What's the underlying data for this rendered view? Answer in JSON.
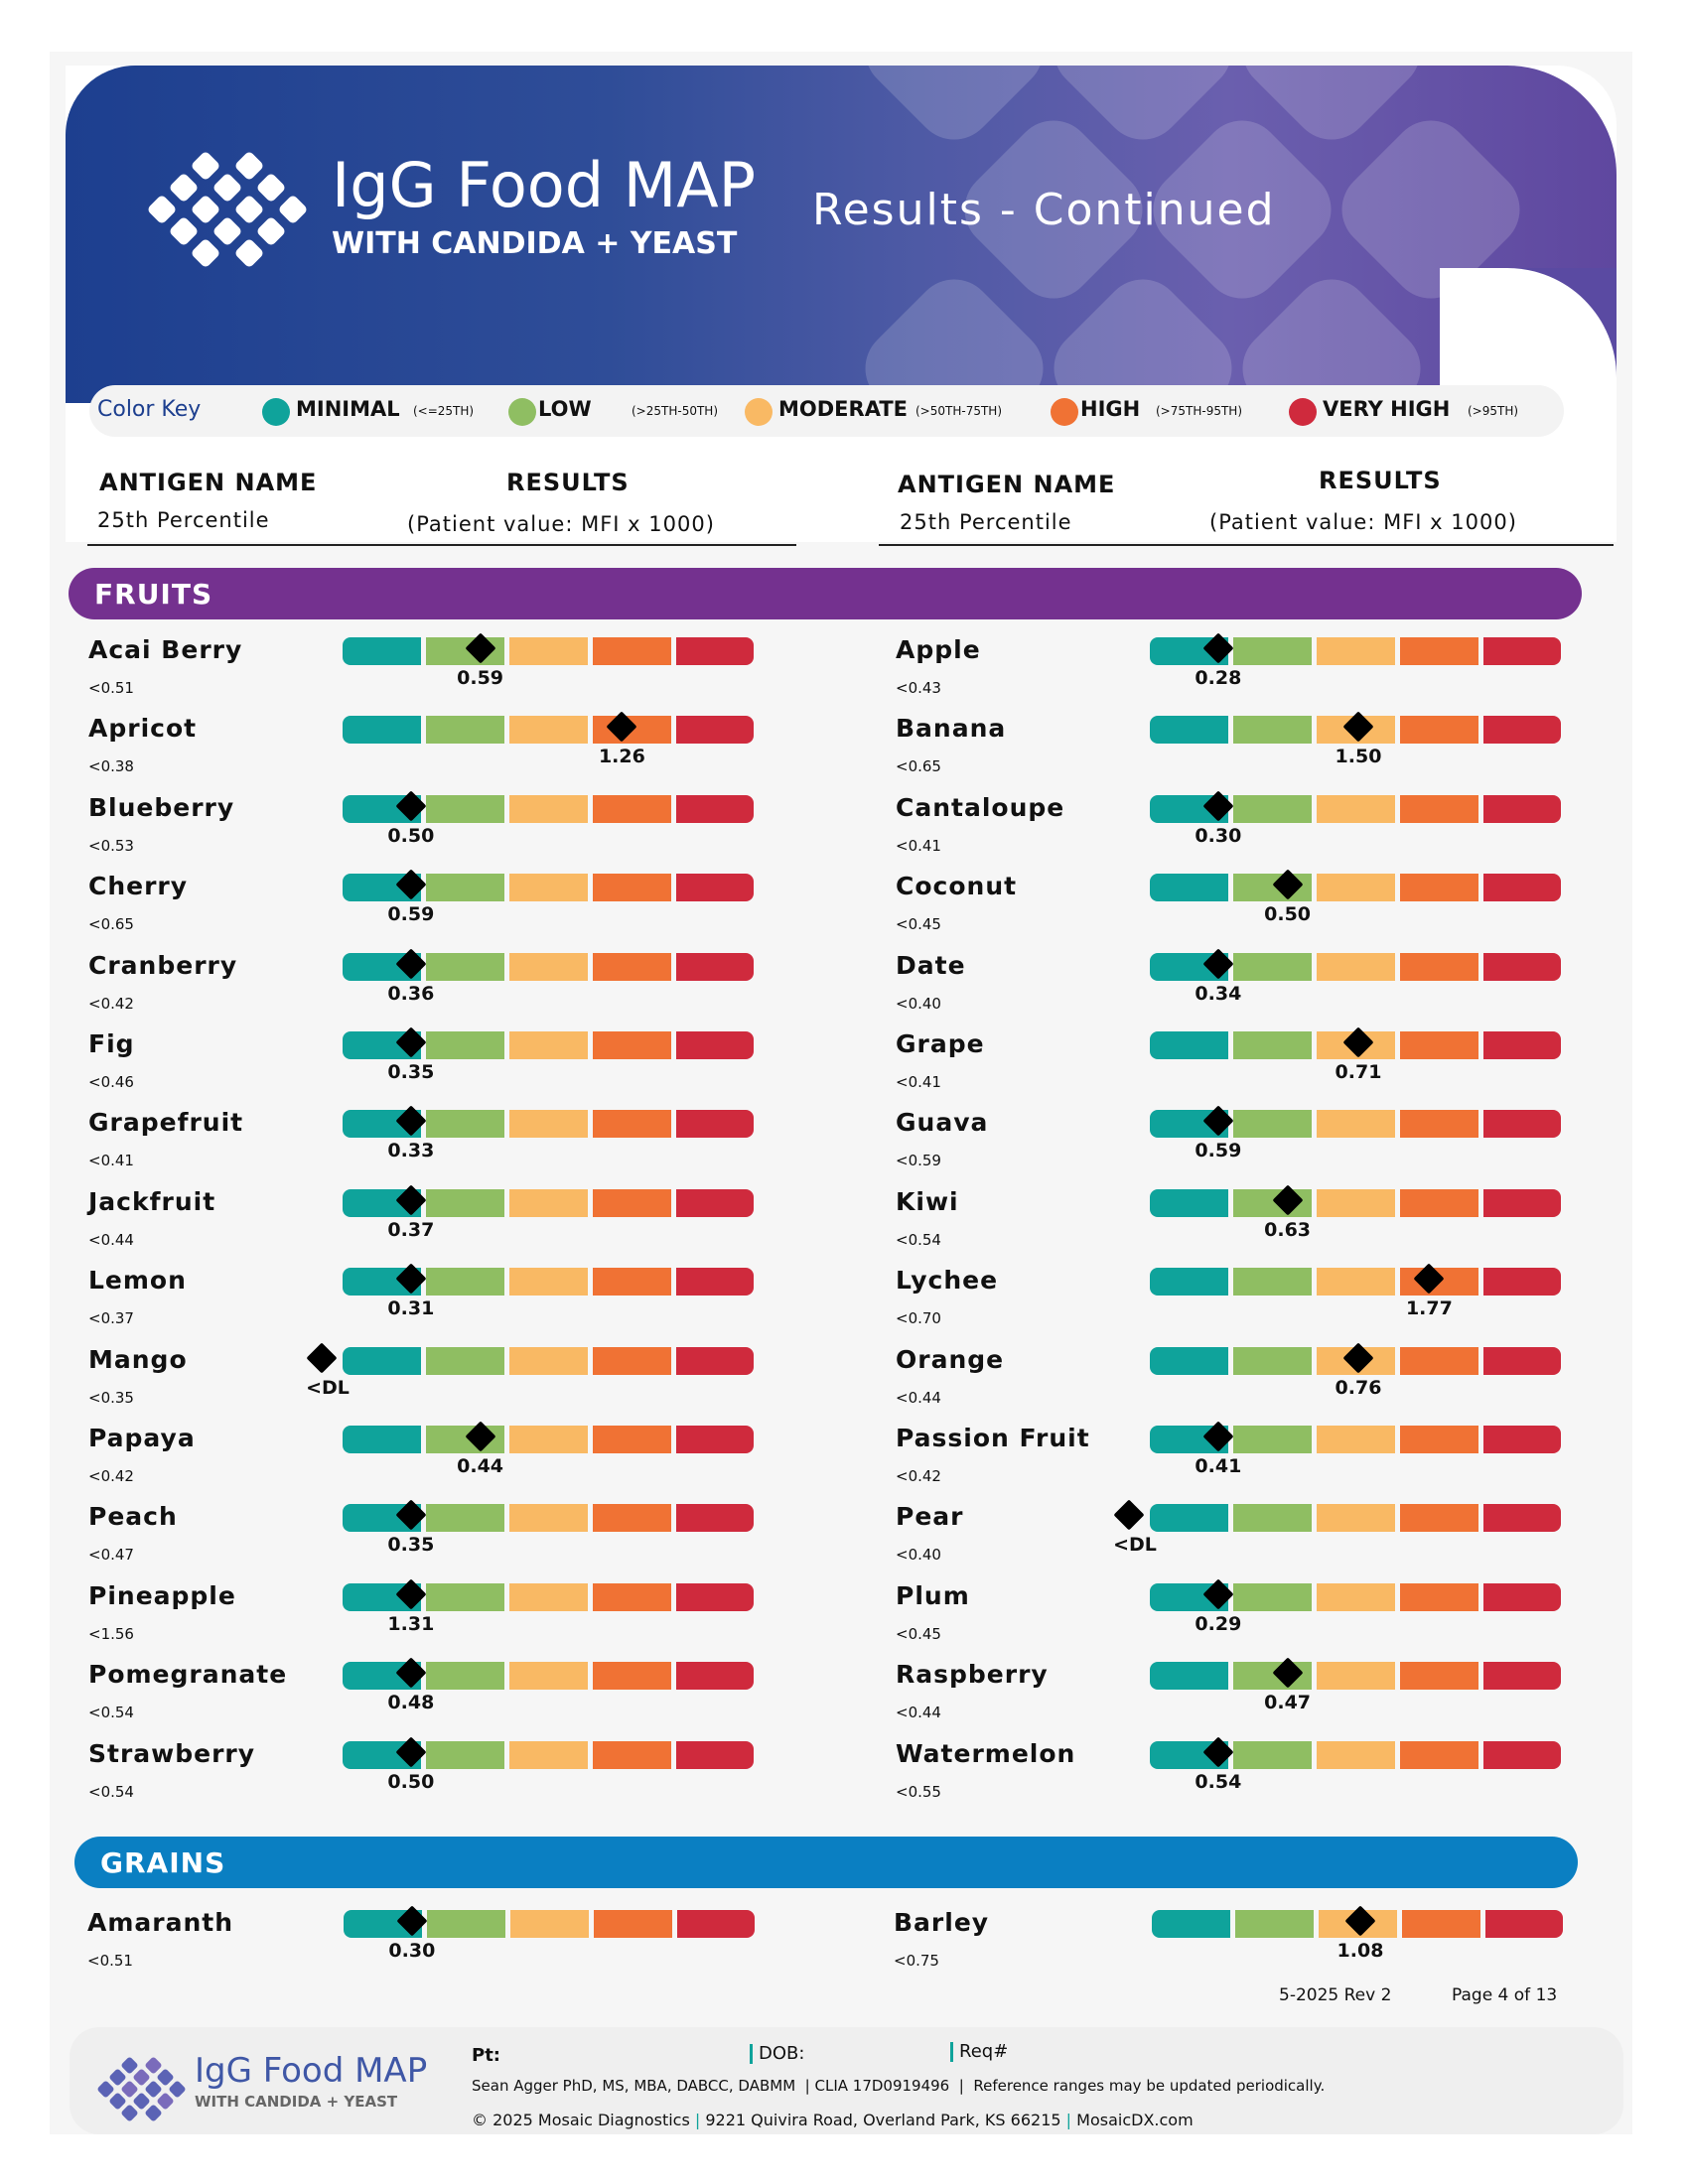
{
  "header": {
    "logo_title": "IgG Food MAP",
    "logo_subtitle": "WITH CANDIDA + YEAST",
    "page_title": "Results - Continued"
  },
  "color_key": {
    "label": "Color Key",
    "items": [
      {
        "name": "MINIMAL",
        "range": "(<=25TH)",
        "color": "#0fa39b"
      },
      {
        "name": "LOW",
        "range": "(>25TH-50TH)",
        "color": "#8fbe62"
      },
      {
        "name": "MODERATE",
        "range": "(>50TH-75TH)",
        "color": "#f9b964"
      },
      {
        "name": "HIGH",
        "range": "(>75TH-95TH)",
        "color": "#f07234"
      },
      {
        "name": "VERY HIGH",
        "range": "(>95TH)",
        "color": "#cf2a3d"
      }
    ]
  },
  "columns": {
    "antigen_name": "ANTIGEN NAME",
    "percentile": "25th Percentile",
    "results": "RESULTS",
    "results_sub": "(Patient value: MFI x 1000)"
  },
  "sections": [
    {
      "title": "FRUITS",
      "color": "#74318f",
      "left": [
        {
          "name": "Acai Berry",
          "pct": "<0.51",
          "value": "0.59",
          "pos": 1.65
        },
        {
          "name": "Apricot",
          "pct": "<0.38",
          "value": "1.26",
          "pos": 3.35
        },
        {
          "name": "Blueberry",
          "pct": "<0.53",
          "value": "0.50",
          "pos": 0.82
        },
        {
          "name": "Cherry",
          "pct": "<0.65",
          "value": "0.59",
          "pos": 0.82
        },
        {
          "name": "Cranberry",
          "pct": "<0.42",
          "value": "0.36",
          "pos": 0.82
        },
        {
          "name": "Fig",
          "pct": "<0.46",
          "value": "0.35",
          "pos": 0.82
        },
        {
          "name": "Grapefruit",
          "pct": "<0.41",
          "value": "0.33",
          "pos": 0.82
        },
        {
          "name": "Jackfruit",
          "pct": "<0.44",
          "value": "0.37",
          "pos": 0.82
        },
        {
          "name": "Lemon",
          "pct": "<0.37",
          "value": "0.31",
          "pos": 0.82
        },
        {
          "name": "Mango",
          "pct": "<0.35",
          "value": "<DL",
          "pos": -0.25
        },
        {
          "name": "Papaya",
          "pct": "<0.42",
          "value": "0.44",
          "pos": 1.65
        },
        {
          "name": "Peach",
          "pct": "<0.47",
          "value": "0.35",
          "pos": 0.82
        },
        {
          "name": "Pineapple",
          "pct": "<1.56",
          "value": "1.31",
          "pos": 0.82
        },
        {
          "name": "Pomegranate",
          "pct": "<0.54",
          "value": "0.48",
          "pos": 0.82
        },
        {
          "name": "Strawberry",
          "pct": "<0.54",
          "value": "0.50",
          "pos": 0.82
        }
      ],
      "right": [
        {
          "name": "Apple",
          "pct": "<0.43",
          "value": "0.28",
          "pos": 0.82
        },
        {
          "name": "Banana",
          "pct": "<0.65",
          "value": "1.50",
          "pos": 2.5
        },
        {
          "name": "Cantaloupe",
          "pct": "<0.41",
          "value": "0.30",
          "pos": 0.82
        },
        {
          "name": "Coconut",
          "pct": "<0.45",
          "value": "0.50",
          "pos": 1.65
        },
        {
          "name": "Date",
          "pct": "<0.40",
          "value": "0.34",
          "pos": 0.82
        },
        {
          "name": "Grape",
          "pct": "<0.41",
          "value": "0.71",
          "pos": 2.5
        },
        {
          "name": "Guava",
          "pct": "<0.59",
          "value": "0.59",
          "pos": 0.82
        },
        {
          "name": "Kiwi",
          "pct": "<0.54",
          "value": "0.63",
          "pos": 1.65
        },
        {
          "name": "Lychee",
          "pct": "<0.70",
          "value": "1.77",
          "pos": 3.35
        },
        {
          "name": "Orange",
          "pct": "<0.44",
          "value": "0.76",
          "pos": 2.5
        },
        {
          "name": "Passion Fruit",
          "pct": "<0.42",
          "value": "0.41",
          "pos": 0.82
        },
        {
          "name": "Pear",
          "pct": "<0.40",
          "value": "<DL",
          "pos": -0.25
        },
        {
          "name": "Plum",
          "pct": "<0.45",
          "value": "0.29",
          "pos": 0.82
        },
        {
          "name": "Raspberry",
          "pct": "<0.44",
          "value": "0.47",
          "pos": 1.65
        },
        {
          "name": "Watermelon",
          "pct": "<0.55",
          "value": "0.54",
          "pos": 0.82
        }
      ]
    },
    {
      "title": "GRAINS",
      "color": "#0a7fc2",
      "left": [
        {
          "name": "Amaranth",
          "pct": "<0.51",
          "value": "0.30",
          "pos": 0.82
        }
      ],
      "right": [
        {
          "name": "Barley",
          "pct": "<0.75",
          "value": "1.08",
          "pos": 2.5
        }
      ]
    }
  ],
  "revision": "5-2025 Rev 2",
  "page_number": "Page 4 of 13",
  "footer": {
    "logo_title": "IgG Food MAP",
    "logo_subtitle": "WITH CANDIDA + YEAST",
    "pt_label": "Pt:",
    "dob_label": "DOB:",
    "req_label": "Req#",
    "credentials": "Sean Agger PhD, MS, MBA, DABCC, DABMM",
    "clia": "CLIA 17D0919496",
    "note": "Reference ranges may be updated periodically.",
    "copyright": "© 2025 Mosaic Diagnostics",
    "address": "9221 Quivira Road, Overland Park, KS 66215",
    "website": "MosaicDX.com"
  }
}
